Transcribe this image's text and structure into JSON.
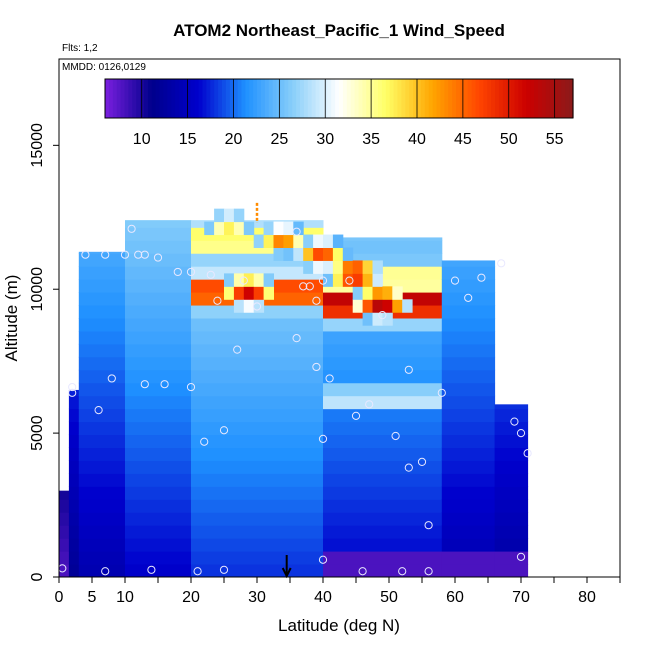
{
  "chart_data": {
    "type": "heatmap",
    "title": "ATOM2 Northeast_Pacific_1 Wind_Speed",
    "flights_label": "Flts: 1,2",
    "dates_label": "MMDD: 0126,0129",
    "xlabel": "Latitude (deg N)",
    "ylabel": "Altitude (m)",
    "xlim": [
      0,
      85
    ],
    "ylim": [
      0,
      18000
    ],
    "x_ticks": [
      0,
      5,
      10,
      20,
      30,
      40,
      50,
      60,
      70,
      80
    ],
    "x_minor_ticks": [
      15,
      25,
      35,
      45,
      55,
      65,
      75,
      85
    ],
    "y_ticks": [
      0,
      5000,
      10000,
      15000
    ],
    "colorbar": {
      "min": 6,
      "max": 57,
      "ticks": [
        10,
        15,
        20,
        25,
        30,
        35,
        40,
        45,
        50,
        55
      ],
      "colors": [
        "#7b1fe0",
        "#00008b",
        "#0000cd",
        "#1e90ff",
        "#87cefa",
        "#ffffff",
        "#ffff66",
        "#ffa500",
        "#ff4500",
        "#cc0000",
        "#8b1a1a"
      ]
    },
    "colors": {
      "background_low": "#0000c8",
      "purple_low": "#6a1fd8"
    },
    "columns": [
      {
        "x0": 0,
        "x1": 2,
        "top": 3000,
        "v": [
          8
        ]
      },
      {
        "x0": 1.5,
        "x1": 3,
        "top": 6500,
        "v": [
          12
        ]
      },
      {
        "x0": 3,
        "x1": 10,
        "top": 11300,
        "v": [
          14
        ]
      },
      {
        "x0": 10,
        "x1": 20,
        "top": 12400,
        "v": [
          16
        ]
      },
      {
        "x0": 20,
        "x1": 40,
        "top": 12400,
        "v": [
          18
        ]
      },
      {
        "x0": 40,
        "x1": 58,
        "top": 11800,
        "v": [
          16
        ]
      },
      {
        "x0": 58,
        "x1": 66,
        "top": 11000,
        "v": [
          14
        ]
      },
      {
        "x0": 66,
        "x1": 71,
        "top": 6000,
        "v": [
          13
        ]
      }
    ],
    "jet": [
      {
        "x": 28,
        "y": 9700,
        "v": 52
      },
      {
        "x": 33,
        "y": 11500,
        "v": 44
      },
      {
        "x": 39,
        "y": 11000,
        "v": 47
      },
      {
        "x": 44,
        "y": 10300,
        "v": 52
      },
      {
        "x": 48,
        "y": 9300,
        "v": 55
      },
      {
        "x": 46,
        "y": 6000,
        "v": 34
      },
      {
        "x": 25,
        "y": 12000,
        "v": 38
      }
    ],
    "points": [
      {
        "x": 0.5,
        "y": 300
      },
      {
        "x": 7,
        "y": 200
      },
      {
        "x": 14,
        "y": 250
      },
      {
        "x": 21,
        "y": 200
      },
      {
        "x": 25,
        "y": 250
      },
      {
        "x": 40,
        "y": 600
      },
      {
        "x": 46,
        "y": 200
      },
      {
        "x": 52,
        "y": 200
      },
      {
        "x": 56,
        "y": 200
      },
      {
        "x": 70,
        "y": 700
      },
      {
        "x": 56,
        "y": 1800
      },
      {
        "x": 53,
        "y": 3800
      },
      {
        "x": 55,
        "y": 4000
      },
      {
        "x": 71,
        "y": 4300
      },
      {
        "x": 70,
        "y": 5000
      },
      {
        "x": 69,
        "y": 5400
      },
      {
        "x": 51,
        "y": 4900
      },
      {
        "x": 40,
        "y": 4800
      },
      {
        "x": 22,
        "y": 4700
      },
      {
        "x": 25,
        "y": 5100
      },
      {
        "x": 6,
        "y": 5800
      },
      {
        "x": 2,
        "y": 6400
      },
      {
        "x": 2,
        "y": 6600
      },
      {
        "x": 8,
        "y": 6900
      },
      {
        "x": 13,
        "y": 6700
      },
      {
        "x": 16,
        "y": 6700
      },
      {
        "x": 20,
        "y": 6600
      },
      {
        "x": 45,
        "y": 5600
      },
      {
        "x": 47,
        "y": 6000
      },
      {
        "x": 41,
        "y": 6900
      },
      {
        "x": 39,
        "y": 7300
      },
      {
        "x": 53,
        "y": 7200
      },
      {
        "x": 58,
        "y": 6400
      },
      {
        "x": 27,
        "y": 7900
      },
      {
        "x": 36,
        "y": 8300
      },
      {
        "x": 30,
        "y": 9400
      },
      {
        "x": 24,
        "y": 9600
      },
      {
        "x": 39,
        "y": 9600
      },
      {
        "x": 49,
        "y": 9100
      },
      {
        "x": 37,
        "y": 10100
      },
      {
        "x": 38,
        "y": 10100
      },
      {
        "x": 40,
        "y": 10300
      },
      {
        "x": 44,
        "y": 10300
      },
      {
        "x": 28,
        "y": 10300
      },
      {
        "x": 18,
        "y": 10600
      },
      {
        "x": 20,
        "y": 10600
      },
      {
        "x": 23,
        "y": 10500
      },
      {
        "x": 60,
        "y": 10300
      },
      {
        "x": 62,
        "y": 9700
      },
      {
        "x": 64,
        "y": 10400
      },
      {
        "x": 67,
        "y": 10900
      },
      {
        "x": 4,
        "y": 11200
      },
      {
        "x": 7,
        "y": 11200
      },
      {
        "x": 10,
        "y": 11200
      },
      {
        "x": 12,
        "y": 11200
      },
      {
        "x": 15,
        "y": 11100
      },
      {
        "x": 13,
        "y": 11200
      },
      {
        "x": 11,
        "y": 12100
      },
      {
        "x": 36,
        "y": 12000
      }
    ],
    "arrow_x": 34.5,
    "marker_top": {
      "x": 30,
      "y0": 12300,
      "y1": 13000
    }
  }
}
